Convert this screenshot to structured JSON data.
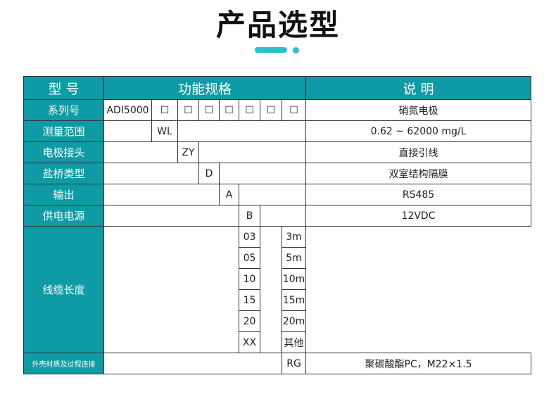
{
  "title": "产品选型",
  "accent": "#0e9ba6",
  "header": {
    "model": "型 号",
    "spec": "功能规格",
    "desc": "说 明"
  },
  "rows": {
    "series": {
      "label": "系列号",
      "code": "ADI5000",
      "box": "☐",
      "desc": "硝氮电极"
    },
    "range": {
      "label": "测量范围",
      "code": "WL",
      "desc": "0.62 ~ 62000 mg/L"
    },
    "electrode": {
      "label": "电极接头",
      "code": "ZY",
      "desc": "直接引线"
    },
    "bridge": {
      "label": "盐桥类型",
      "code": "D",
      "desc": "双室结构隔膜"
    },
    "output": {
      "label": "输出",
      "code": "A",
      "desc": "RS485"
    },
    "power": {
      "label": "供电电源",
      "code": "B",
      "desc": "12VDC"
    },
    "cable": {
      "label": "线缆长度",
      "options": [
        {
          "code": "03",
          "desc": "3m"
        },
        {
          "code": "05",
          "desc": "5m"
        },
        {
          "code": "10",
          "desc": "10m"
        },
        {
          "code": "15",
          "desc": "15m"
        },
        {
          "code": "20",
          "desc": "20m"
        },
        {
          "code": "XX",
          "desc": "其他"
        }
      ]
    },
    "shell": {
      "label": "外壳材质及过程连接",
      "code": "RG",
      "desc": "聚碳酸酯PC，M22×1.5"
    }
  }
}
